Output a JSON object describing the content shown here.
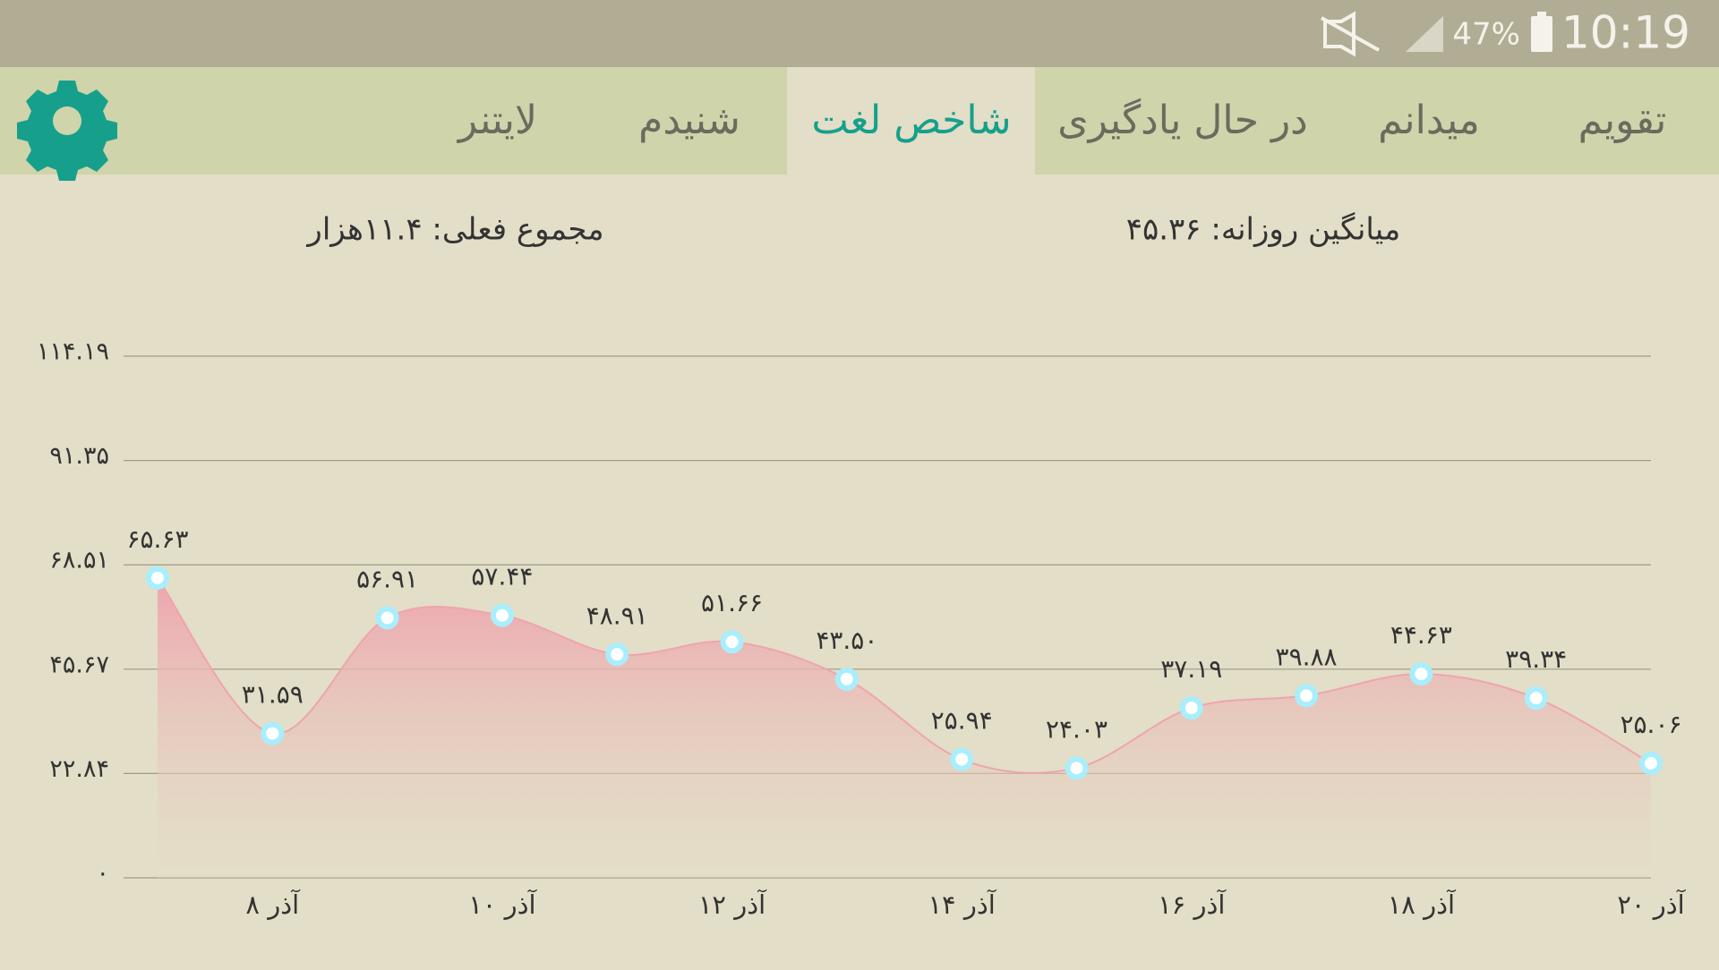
{
  "status_bar": {
    "battery": "47%",
    "time": "10:19"
  },
  "tabs": [
    "تقویم",
    "میدانم",
    "در حال یادگیری",
    "شاخص لغت",
    "شنیدم",
    "لایتنر"
  ],
  "stats": {
    "daily_average": "میانگین روزانه: ۴۵.۳۶",
    "current_total": "مجموع فعلی: ۱۱.۴هزار"
  },
  "chart_data": {
    "type": "area",
    "color": "#eea5ae",
    "categories": [
      null,
      "۸ آذر",
      null,
      "۱۰ آذر",
      null,
      "۱۲ آذر",
      null,
      "۱۴ آذر",
      null,
      "۱۶ آذر",
      null,
      "۱۸ آذر",
      null,
      "۲۰ آذر"
    ],
    "values": [
      65.63,
      31.59,
      56.91,
      57.44,
      48.91,
      51.66,
      43.5,
      25.94,
      24.03,
      37.19,
      39.88,
      44.63,
      39.34,
      25.06
    ],
    "value_labels": [
      "۶۵.۶۳",
      "۳۱.۵۹",
      "۵۶.۹۱",
      "۵۷.۴۴",
      "۴۸.۹۱",
      "۵۱.۶۶",
      "۴۳.۵۰",
      "۲۵.۹۴",
      "۲۴.۰۳",
      "۳۷.۱۹",
      "۳۹.۸۸",
      "۴۴.۶۳",
      "۳۹.۳۴",
      "۲۵.۰۶"
    ],
    "ylim": [
      0,
      114.19
    ],
    "yticks": [
      {
        "value": 0,
        "label": "۰"
      },
      {
        "value": 22.84,
        "label": "۲۲.۸۴"
      },
      {
        "value": 45.67,
        "label": "۴۵.۶۷"
      },
      {
        "value": 68.51,
        "label": "۶۸.۵۱"
      },
      {
        "value": 91.35,
        "label": "۹۱.۳۵"
      },
      {
        "value": 114.19,
        "label": "۱۱۴.۱۹"
      }
    ],
    "grid": true
  }
}
